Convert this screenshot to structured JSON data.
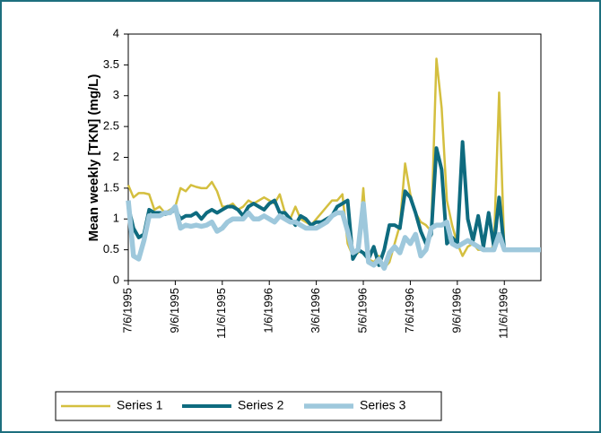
{
  "chart_data": {
    "type": "line",
    "y_label": "Mean weekly [TKN] (mg/L)",
    "categories": [
      "7/6/1995",
      null,
      null,
      null,
      null,
      null,
      null,
      null,
      null,
      "9/6/1995",
      null,
      null,
      null,
      null,
      null,
      null,
      null,
      null,
      "11/6/1995",
      null,
      null,
      null,
      null,
      null,
      null,
      null,
      null,
      "1/6/1996",
      null,
      null,
      null,
      null,
      null,
      null,
      null,
      null,
      "3/6/1996",
      null,
      null,
      null,
      null,
      null,
      null,
      null,
      null,
      "5/6/1996",
      null,
      null,
      null,
      null,
      null,
      null,
      null,
      null,
      "7/6/1996",
      null,
      null,
      null,
      null,
      null,
      null,
      null,
      null,
      "9/6/1996",
      null,
      null,
      null,
      null,
      null,
      null,
      null,
      null,
      "11/6/1996",
      null,
      null,
      null,
      null,
      null,
      null,
      null
    ],
    "ylim": [
      0,
      4
    ],
    "yticks": [
      0,
      0.5,
      1,
      1.5,
      2,
      2.5,
      3,
      3.5,
      4
    ],
    "grid": false,
    "legend": "bottom",
    "series": [
      {
        "name": "Series 1",
        "color": "#d4bf3f",
        "values": [
          1.55,
          1.35,
          1.42,
          1.42,
          1.4,
          1.15,
          1.2,
          1.1,
          1.15,
          1.2,
          1.5,
          1.45,
          1.55,
          1.52,
          1.5,
          1.5,
          1.6,
          1.45,
          1.2,
          1.2,
          1.25,
          1.15,
          1.2,
          1.3,
          1.25,
          1.3,
          1.35,
          1.3,
          1.25,
          1.4,
          1.1,
          1.0,
          1.2,
          1.0,
          0.95,
          0.9,
          1.0,
          1.1,
          1.2,
          1.3,
          1.3,
          1.4,
          0.6,
          0.4,
          0.45,
          1.5,
          0.35,
          0.3,
          0.4,
          0.2,
          0.3,
          0.6,
          0.9,
          1.9,
          1.4,
          1.1,
          0.95,
          0.9,
          0.8,
          3.6,
          2.8,
          1.3,
          0.9,
          0.6,
          0.4,
          0.55,
          0.6,
          0.5,
          0.5,
          0.5,
          0.55,
          3.05,
          0.5,
          0.5,
          0.5,
          0.5,
          0.5,
          0.5,
          0.5,
          0.5
        ]
      },
      {
        "name": "Series 2",
        "color": "#0e6b7f",
        "values": [
          1.2,
          0.85,
          0.7,
          0.75,
          1.15,
          1.1,
          1.1,
          1.08,
          1.1,
          1.15,
          1.0,
          1.05,
          1.05,
          1.1,
          1.0,
          1.1,
          1.15,
          1.1,
          1.15,
          1.2,
          1.2,
          1.15,
          1.05,
          1.2,
          1.25,
          1.2,
          1.15,
          1.25,
          1.3,
          1.1,
          1.1,
          1.0,
          0.9,
          1.05,
          1.0,
          0.9,
          0.95,
          0.95,
          1.0,
          1.05,
          1.2,
          1.25,
          1.3,
          0.35,
          0.5,
          0.45,
          0.35,
          0.55,
          0.25,
          0.5,
          0.9,
          0.9,
          0.85,
          1.45,
          1.35,
          1.1,
          0.8,
          0.6,
          0.75,
          2.15,
          1.8,
          0.6,
          0.7,
          0.6,
          2.25,
          1.0,
          0.65,
          1.05,
          0.55,
          1.1,
          0.55,
          1.35,
          0.5,
          0.5,
          0.5,
          0.5,
          0.5,
          0.5,
          0.5,
          0.5
        ]
      },
      {
        "name": "Series 3",
        "color": "#9ec8dc",
        "values": [
          1.3,
          0.4,
          0.35,
          0.65,
          1.05,
          1.05,
          1.05,
          1.1,
          1.1,
          1.2,
          0.85,
          0.9,
          0.88,
          0.9,
          0.88,
          0.9,
          0.95,
          0.8,
          0.85,
          0.95,
          1.0,
          1.0,
          1.0,
          1.1,
          1.0,
          1.0,
          1.05,
          1.0,
          0.95,
          1.05,
          1.0,
          0.95,
          0.95,
          0.9,
          0.85,
          0.85,
          0.85,
          0.9,
          0.95,
          1.05,
          1.1,
          1.1,
          0.8,
          0.45,
          0.5,
          1.25,
          0.3,
          0.25,
          0.35,
          0.2,
          0.45,
          0.55,
          0.45,
          0.7,
          0.6,
          0.75,
          0.4,
          0.5,
          0.85,
          0.9,
          0.9,
          0.95,
          0.6,
          0.55,
          0.6,
          0.65,
          0.6,
          0.55,
          0.5,
          0.5,
          0.5,
          0.75,
          0.5,
          0.5,
          0.5,
          0.5,
          0.5,
          0.5,
          0.5,
          0.5
        ]
      }
    ]
  }
}
